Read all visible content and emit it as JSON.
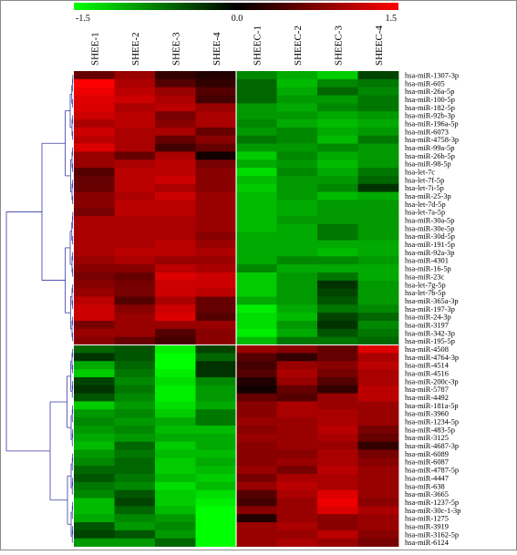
{
  "chart_data": {
    "type": "heatmap",
    "colorbar": {
      "min": -1.5,
      "mid": 0.0,
      "max": 1.5,
      "tick_labels": [
        "-1.5",
        "0.0",
        "1.5"
      ],
      "colors": {
        "low": "#00ff00",
        "mid": "#000000",
        "high": "#ff0000"
      }
    },
    "columns": [
      "SHEE-1",
      "SHEE-2",
      "SHEE-3",
      "SHEE-4",
      "SHEEC-1",
      "SHEEC-2",
      "SHEEC-3",
      "SHEEC-4"
    ],
    "rows": [
      "hsa-miR-1307-3p",
      "hsa-miR-605",
      "hsa-miR-26a-5p",
      "hsa-miR-100-5p",
      "hsa-miR-182-5p",
      "hsa-miR-92b-3p",
      "hsa-miR-196a-5p",
      "hsa-miR-6073",
      "hsa-miR-4758-3p",
      "hsa-miR-99a-5p",
      "hsa-miR-26b-5p",
      "hsa-miR-98-5p",
      "hsa-let-7c",
      "hsa-let-7f-5p",
      "hsa-let-7i-5p",
      "hsa-miR-25-3p",
      "hsa-let-7d-5p",
      "hsa-let-7a-5p",
      "hsa-miR-30a-5p",
      "hsa-miR-30e-5p",
      "hsa-miR-30d-5p",
      "hsa-miR-191-5p",
      "hsa-miR-92a-3p",
      "hsa-miR-4301",
      "hsa-miR-16-5p",
      "hsa-miR-23c",
      "hsa-let-7g-5p",
      "hsa-let-7b-5p",
      "hsa-miR-365a-3p",
      "hsa-miR-197-3p",
      "hsa-miR-24-3p",
      "hsa-miR-3197",
      "hsa-miR-342-3p",
      "hsa-miR-195-5p",
      "hsa-miR-4508",
      "hsa-miR-4764-3p",
      "hsa-miR-4514",
      "hsa-miR-4516",
      "hsa-miR-200c-3p",
      "hsa-miR-5787",
      "hsa-miR-4492",
      "hsa-miR-181a-5p",
      "hsa-miR-3960",
      "hsa-miR-1234-5p",
      "hsa-miR-483-5p",
      "hsa-miR-3125",
      "hsa-miR-4687-3p",
      "hsa-miR-6089",
      "hsa-miR-6087",
      "hsa-miR-4787-5p",
      "hsa-miR-4447",
      "hsa-miR-638",
      "hsa-miR-3665",
      "hsa-miR-1237-5p",
      "hsa-miR-30c-1-3p",
      "hsa-miR-1275",
      "hsa-miR-3919",
      "hsa-miR-3162-5p",
      "hsa-miR-6124"
    ],
    "values": [
      [
        0.6,
        0.9,
        0.3,
        0.2,
        -0.8,
        -1.0,
        -1.2,
        -0.4
      ],
      [
        1.5,
        1.0,
        0.5,
        0.3,
        -0.6,
        -1.1,
        -0.8,
        -0.7
      ],
      [
        1.4,
        1.1,
        0.9,
        0.5,
        -0.6,
        -1.0,
        -0.6,
        -0.8
      ],
      [
        1.3,
        1.2,
        1.0,
        0.4,
        -0.6,
        -0.9,
        -0.9,
        -0.7
      ],
      [
        1.3,
        1.0,
        1.1,
        0.9,
        -0.9,
        -1.0,
        -0.8,
        -0.7
      ],
      [
        1.2,
        1.1,
        0.7,
        1.0,
        -0.9,
        -0.9,
        -1.0,
        -0.9
      ],
      [
        1.0,
        1.1,
        0.8,
        1.0,
        -0.8,
        -1.0,
        -1.1,
        -1.0
      ],
      [
        1.2,
        1.0,
        1.0,
        0.6,
        -0.9,
        -0.8,
        -1.0,
        -0.9
      ],
      [
        1.1,
        1.0,
        0.6,
        0.8,
        -0.7,
        -0.8,
        -1.1,
        -0.7
      ],
      [
        1.3,
        1.0,
        0.4,
        0.6,
        -0.9,
        -0.9,
        -0.8,
        -0.9
      ],
      [
        0.9,
        0.6,
        1.0,
        0.1,
        -1.2,
        -0.8,
        -1.0,
        -0.9
      ],
      [
        0.9,
        1.0,
        1.1,
        0.7,
        -1.0,
        -0.9,
        -1.1,
        -0.9
      ],
      [
        0.5,
        1.1,
        1.1,
        0.8,
        -1.3,
        -0.8,
        -1.0,
        -0.7
      ],
      [
        0.6,
        1.1,
        1.2,
        0.8,
        -1.1,
        -0.9,
        -0.9,
        -0.6
      ],
      [
        0.6,
        1.1,
        1.0,
        0.8,
        -1.2,
        -0.9,
        -0.8,
        -0.3
      ],
      [
        0.8,
        1.0,
        1.2,
        0.9,
        -1.1,
        -0.9,
        -1.1,
        -1.0
      ],
      [
        0.8,
        1.1,
        1.1,
        0.9,
        -1.1,
        -1.0,
        -0.9,
        -0.9
      ],
      [
        0.7,
        1.1,
        1.1,
        0.9,
        -1.1,
        -1.0,
        -0.9,
        -0.9
      ],
      [
        1.0,
        1.0,
        1.0,
        0.9,
        -1.1,
        -0.9,
        -0.9,
        -0.9
      ],
      [
        1.0,
        1.0,
        1.0,
        0.9,
        -1.1,
        -1.0,
        -0.7,
        -0.9
      ],
      [
        1.0,
        1.0,
        1.0,
        0.8,
        -1.0,
        -1.0,
        -0.7,
        -0.9
      ],
      [
        1.0,
        1.0,
        1.1,
        0.9,
        -1.0,
        -1.0,
        -1.0,
        -1.0
      ],
      [
        1.0,
        1.1,
        1.1,
        1.0,
        -1.0,
        -1.0,
        -1.1,
        -1.0
      ],
      [
        0.9,
        1.0,
        0.9,
        0.9,
        -1.0,
        -0.8,
        -0.8,
        -0.9
      ],
      [
        0.8,
        0.8,
        1.1,
        1.0,
        -0.8,
        -1.0,
        -1.0,
        -1.0
      ],
      [
        0.7,
        0.6,
        1.3,
        1.2,
        -1.2,
        -0.9,
        -0.7,
        -1.0
      ],
      [
        0.8,
        0.7,
        1.2,
        1.2,
        -1.2,
        -0.9,
        -0.3,
        -0.9
      ],
      [
        0.9,
        0.7,
        1.2,
        1.1,
        -1.2,
        -0.9,
        -0.4,
        -0.9
      ],
      [
        1.1,
        0.5,
        1.0,
        0.6,
        -1.0,
        -0.9,
        -0.5,
        -0.9
      ],
      [
        1.2,
        0.8,
        1.2,
        0.6,
        -1.4,
        -1.0,
        -0.7,
        -0.8
      ],
      [
        1.2,
        0.9,
        1.3,
        0.5,
        -1.3,
        -1.1,
        -0.4,
        -0.6
      ],
      [
        0.7,
        0.9,
        0.9,
        0.9,
        -1.3,
        -0.9,
        -0.3,
        -0.8
      ],
      [
        0.9,
        0.9,
        0.5,
        0.8,
        -1.4,
        -1.0,
        -0.5,
        -0.7
      ],
      [
        0.8,
        0.6,
        0.4,
        0.8,
        -1.1,
        -0.7,
        -0.7,
        -0.6
      ],
      [
        -0.6,
        -0.5,
        -1.4,
        -0.4,
        0.9,
        0.8,
        0.6,
        1.3
      ],
      [
        -0.3,
        -0.5,
        -1.5,
        -0.6,
        0.5,
        0.3,
        0.6,
        1.0
      ],
      [
        -1.0,
        -0.6,
        -1.5,
        -0.3,
        0.4,
        0.9,
        0.8,
        1.1
      ],
      [
        -1.2,
        -0.7,
        -1.4,
        -0.3,
        0.5,
        1.0,
        0.7,
        1.0
      ],
      [
        -0.4,
        -0.8,
        -1.3,
        -0.8,
        0.2,
        0.9,
        0.5,
        1.0
      ],
      [
        -0.3,
        -0.7,
        -1.4,
        -0.9,
        0.1,
        0.6,
        0.3,
        1.1
      ],
      [
        -0.5,
        -0.8,
        -1.4,
        -0.9,
        0.6,
        0.5,
        0.9,
        1.1
      ],
      [
        -1.2,
        -0.9,
        -1.3,
        -1.0,
        0.8,
        1.0,
        0.9,
        0.9
      ],
      [
        -0.9,
        -0.8,
        -1.2,
        -0.7,
        0.8,
        1.0,
        1.0,
        0.9
      ],
      [
        -0.8,
        -0.9,
        -1.0,
        -0.7,
        0.9,
        0.9,
        1.0,
        0.9
      ],
      [
        -0.9,
        -0.8,
        -1.1,
        -1.1,
        0.8,
        0.9,
        1.1,
        0.7
      ],
      [
        -1.0,
        -0.9,
        -1.0,
        -1.0,
        0.9,
        0.9,
        1.0,
        0.6
      ],
      [
        -1.1,
        -0.6,
        -1.2,
        -1.0,
        0.8,
        0.9,
        0.9,
        0.3
      ],
      [
        -0.9,
        -0.7,
        -1.1,
        -1.1,
        0.8,
        0.8,
        1.0,
        0.7
      ],
      [
        -0.8,
        -0.6,
        -1.2,
        -1.0,
        0.8,
        0.9,
        1.0,
        0.8
      ],
      [
        -0.6,
        -0.6,
        -1.2,
        -1.1,
        0.9,
        0.7,
        1.1,
        0.9
      ],
      [
        -0.5,
        -0.7,
        -1.1,
        -1.2,
        0.7,
        1.0,
        1.0,
        0.9
      ],
      [
        -0.7,
        -0.8,
        -1.3,
        -1.1,
        0.9,
        1.1,
        1.0,
        0.9
      ],
      [
        -0.8,
        -0.5,
        -1.2,
        -1.3,
        0.5,
        1.0,
        1.3,
        0.9
      ],
      [
        -1.1,
        -0.4,
        -1.2,
        -1.4,
        0.4,
        0.9,
        1.4,
        0.8
      ],
      [
        -1.1,
        -0.6,
        -1.1,
        -1.5,
        0.8,
        0.9,
        1.3,
        1.0
      ],
      [
        -1.0,
        -0.8,
        -0.9,
        -1.5,
        0.2,
        0.9,
        0.8,
        0.9
      ],
      [
        -0.5,
        -0.9,
        -0.8,
        -1.5,
        0.9,
        1.0,
        0.8,
        0.9
      ],
      [
        -0.4,
        -0.5,
        -0.9,
        -1.5,
        0.9,
        0.9,
        1.1,
        0.8
      ],
      [
        -0.9,
        -0.9,
        -0.6,
        -1.5,
        0.9,
        1.0,
        0.9,
        0.7
      ]
    ],
    "dendrogram": {
      "main_split_after_row": 33
    }
  }
}
